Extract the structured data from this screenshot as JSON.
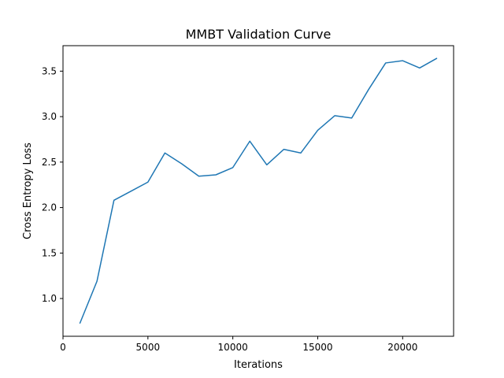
{
  "chart_data": {
    "type": "line",
    "title": "MMBT Validation Curve",
    "xlabel": "Iterations",
    "ylabel": "Cross Entropy Loss",
    "xlim": [
      0,
      23000
    ],
    "ylim": [
      0.585,
      3.78
    ],
    "xticks": [
      0,
      5000,
      10000,
      15000,
      20000
    ],
    "xtick_labels": [
      "0",
      "5000",
      "10000",
      "15000",
      "20000"
    ],
    "yticks": [
      1.0,
      1.5,
      2.0,
      2.5,
      3.0,
      3.5
    ],
    "ytick_labels": [
      "1.0",
      "1.5",
      "2.0",
      "2.5",
      "3.0",
      "3.5"
    ],
    "grid": false,
    "legend": "none",
    "line_color": "#1f77b4",
    "series": [
      {
        "x": [
          1000,
          2000,
          3000,
          4000,
          5000,
          6000,
          7000,
          8000,
          9000,
          10000,
          11000,
          12000,
          13000,
          14000,
          15000,
          16000,
          17000,
          18000,
          19000,
          20000,
          21000,
          22000
        ],
        "y": [
          0.73,
          1.19,
          2.08,
          2.18,
          2.28,
          2.6,
          2.48,
          2.345,
          2.36,
          2.44,
          2.73,
          2.47,
          2.64,
          2.6,
          2.85,
          3.01,
          2.985,
          3.3,
          3.59,
          3.615,
          3.535,
          3.64
        ]
      }
    ]
  }
}
